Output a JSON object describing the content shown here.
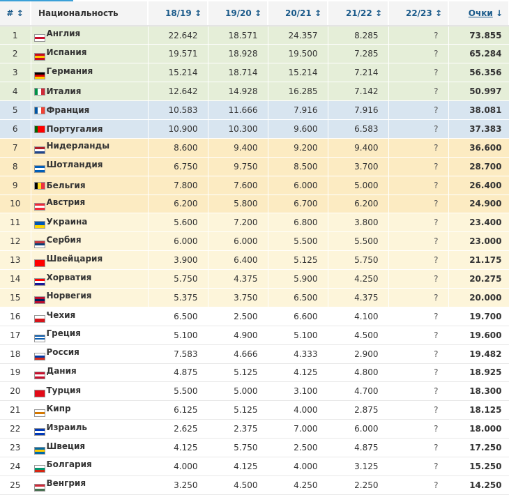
{
  "header": {
    "rank": "#",
    "rank_sort": "↕",
    "name": "Национальность",
    "cols": [
      "18/19",
      "19/20",
      "20/21",
      "21/22",
      "22/23"
    ],
    "sort": "↕",
    "points": "Очки",
    "points_sort": "↓"
  },
  "colors": {
    "accent": "#3aa0d8",
    "green": "#e5eed8",
    "blue": "#d8e5f0",
    "orange": "#fcebc2",
    "yellow": "#fdf5da"
  },
  "rows": [
    {
      "rank": "1",
      "name": "Англия",
      "v": [
        "22.642",
        "18.571",
        "24.357",
        "8.285",
        "?"
      ],
      "pts": "73.855",
      "band": "g",
      "flag": {
        "dir": "h",
        "c": [
          "#fff",
          "#c8102e",
          "#fff"
        ]
      }
    },
    {
      "rank": "2",
      "name": "Испания",
      "v": [
        "19.571",
        "18.928",
        "19.500",
        "7.285",
        "?"
      ],
      "pts": "65.284",
      "band": "g",
      "flag": {
        "dir": "h",
        "c": [
          "#c60b1e",
          "#ffc400",
          "#c60b1e"
        ]
      }
    },
    {
      "rank": "3",
      "name": "Германия",
      "v": [
        "15.214",
        "18.714",
        "15.214",
        "7.214",
        "?"
      ],
      "pts": "56.356",
      "band": "g",
      "flag": {
        "dir": "h",
        "c": [
          "#000",
          "#dd0000",
          "#ffce00"
        ]
      }
    },
    {
      "rank": "4",
      "name": "Италия",
      "v": [
        "12.642",
        "14.928",
        "16.285",
        "7.142",
        "?"
      ],
      "pts": "50.997",
      "band": "g",
      "flag": {
        "dir": "v",
        "c": [
          "#009246",
          "#fff",
          "#ce2b37"
        ]
      }
    },
    {
      "rank": "5",
      "name": "Франция",
      "v": [
        "10.583",
        "11.666",
        "7.916",
        "7.916",
        "?"
      ],
      "pts": "38.081",
      "band": "b",
      "flag": {
        "dir": "v",
        "c": [
          "#0055a4",
          "#fff",
          "#ef4135"
        ]
      }
    },
    {
      "rank": "6",
      "name": "Португалия",
      "v": [
        "10.900",
        "10.300",
        "9.600",
        "6.583",
        "?"
      ],
      "pts": "37.383",
      "band": "b",
      "flag": {
        "dir": "v",
        "c": [
          "#006600",
          "#ff0000",
          "#ff0000"
        ]
      }
    },
    {
      "rank": "7",
      "name": "Нидерланды",
      "v": [
        "8.600",
        "9.400",
        "9.200",
        "9.400",
        "?"
      ],
      "pts": "36.600",
      "band": "o",
      "flag": {
        "dir": "h",
        "c": [
          "#ae1c28",
          "#fff",
          "#21468b"
        ]
      }
    },
    {
      "rank": "8",
      "name": "Шотландия",
      "v": [
        "6.750",
        "9.750",
        "8.500",
        "3.700",
        "?"
      ],
      "pts": "28.700",
      "band": "o",
      "flag": {
        "dir": "h",
        "c": [
          "#005eb8",
          "#fff",
          "#005eb8"
        ]
      }
    },
    {
      "rank": "9",
      "name": "Бельгия",
      "v": [
        "7.800",
        "7.600",
        "6.000",
        "5.000",
        "?"
      ],
      "pts": "26.400",
      "band": "o",
      "flag": {
        "dir": "v",
        "c": [
          "#000",
          "#fdda24",
          "#ef3340"
        ]
      }
    },
    {
      "rank": "10",
      "name": "Австрия",
      "v": [
        "6.200",
        "5.800",
        "6.700",
        "6.200",
        "?"
      ],
      "pts": "24.900",
      "band": "o",
      "flag": {
        "dir": "h",
        "c": [
          "#ed2939",
          "#fff",
          "#ed2939"
        ]
      }
    },
    {
      "rank": "11",
      "name": "Украина",
      "v": [
        "5.600",
        "7.200",
        "6.800",
        "3.800",
        "?"
      ],
      "pts": "23.400",
      "band": "y",
      "flag": {
        "dir": "h",
        "c": [
          "#0057b7",
          "#ffd700"
        ]
      }
    },
    {
      "rank": "12",
      "name": "Сербия",
      "v": [
        "6.000",
        "6.000",
        "5.500",
        "5.500",
        "?"
      ],
      "pts": "23.000",
      "band": "y",
      "flag": {
        "dir": "h",
        "c": [
          "#c6363c",
          "#0c4076",
          "#fff"
        ]
      }
    },
    {
      "rank": "13",
      "name": "Швейцария",
      "v": [
        "3.900",
        "6.400",
        "5.125",
        "5.750",
        "?"
      ],
      "pts": "21.175",
      "band": "y",
      "flag": {
        "dir": "h",
        "c": [
          "#ff0000",
          "#ff0000",
          "#ff0000"
        ]
      }
    },
    {
      "rank": "14",
      "name": "Хорватия",
      "v": [
        "5.750",
        "4.375",
        "5.900",
        "4.250",
        "?"
      ],
      "pts": "20.275",
      "band": "y",
      "flag": {
        "dir": "h",
        "c": [
          "#ff0000",
          "#fff",
          "#171796"
        ]
      }
    },
    {
      "rank": "15",
      "name": "Норвегия",
      "v": [
        "5.375",
        "3.750",
        "6.500",
        "4.375",
        "?"
      ],
      "pts": "20.000",
      "band": "y",
      "flag": {
        "dir": "h",
        "c": [
          "#ba0c2f",
          "#00205b",
          "#ba0c2f"
        ]
      }
    },
    {
      "rank": "16",
      "name": "Чехия",
      "v": [
        "6.500",
        "2.500",
        "6.600",
        "4.100",
        "?"
      ],
      "pts": "19.700",
      "band": "w",
      "flag": {
        "dir": "h",
        "c": [
          "#fff",
          "#d7141a"
        ]
      }
    },
    {
      "rank": "17",
      "name": "Греция",
      "v": [
        "5.100",
        "4.900",
        "5.100",
        "4.500",
        "?"
      ],
      "pts": "19.600",
      "band": "w",
      "flag": {
        "dir": "h",
        "c": [
          "#0d5eaf",
          "#fff",
          "#0d5eaf",
          "#fff"
        ]
      }
    },
    {
      "rank": "18",
      "name": "Россия",
      "v": [
        "7.583",
        "4.666",
        "4.333",
        "2.900",
        "?"
      ],
      "pts": "19.482",
      "band": "w",
      "flag": {
        "dir": "h",
        "c": [
          "#fff",
          "#0039a6",
          "#d52b1e"
        ]
      }
    },
    {
      "rank": "19",
      "name": "Дания",
      "v": [
        "4.875",
        "5.125",
        "4.125",
        "4.800",
        "?"
      ],
      "pts": "18.925",
      "band": "w",
      "flag": {
        "dir": "h",
        "c": [
          "#c8102e",
          "#fff",
          "#c8102e"
        ]
      }
    },
    {
      "rank": "20",
      "name": "Турция",
      "v": [
        "5.500",
        "5.000",
        "3.100",
        "4.700",
        "?"
      ],
      "pts": "18.300",
      "band": "w",
      "flag": {
        "dir": "h",
        "c": [
          "#e30a17",
          "#e30a17"
        ]
      }
    },
    {
      "rank": "21",
      "name": "Кипр",
      "v": [
        "6.125",
        "5.125",
        "4.000",
        "2.875",
        "?"
      ],
      "pts": "18.125",
      "band": "w",
      "flag": {
        "dir": "h",
        "c": [
          "#fff",
          "#d57800",
          "#fff"
        ]
      }
    },
    {
      "rank": "22",
      "name": "Израиль",
      "v": [
        "2.625",
        "2.375",
        "7.000",
        "6.000",
        "?"
      ],
      "pts": "18.000",
      "band": "w",
      "flag": {
        "dir": "h",
        "c": [
          "#0038b8",
          "#fff",
          "#0038b8"
        ]
      }
    },
    {
      "rank": "23",
      "name": "Швеция",
      "v": [
        "4.125",
        "5.750",
        "2.500",
        "4.875",
        "?"
      ],
      "pts": "17.250",
      "band": "w",
      "flag": {
        "dir": "h",
        "c": [
          "#006aa7",
          "#fecc00",
          "#006aa7"
        ]
      }
    },
    {
      "rank": "24",
      "name": "Болгария",
      "v": [
        "4.000",
        "4.125",
        "4.000",
        "3.125",
        "?"
      ],
      "pts": "15.250",
      "band": "w",
      "flag": {
        "dir": "h",
        "c": [
          "#fff",
          "#00966e",
          "#d62612"
        ]
      }
    },
    {
      "rank": "25",
      "name": "Венгрия",
      "v": [
        "3.250",
        "4.500",
        "4.250",
        "2.250",
        "?"
      ],
      "pts": "14.250",
      "band": "w",
      "flag": {
        "dir": "h",
        "c": [
          "#ce2939",
          "#fff",
          "#477050"
        ]
      }
    }
  ]
}
